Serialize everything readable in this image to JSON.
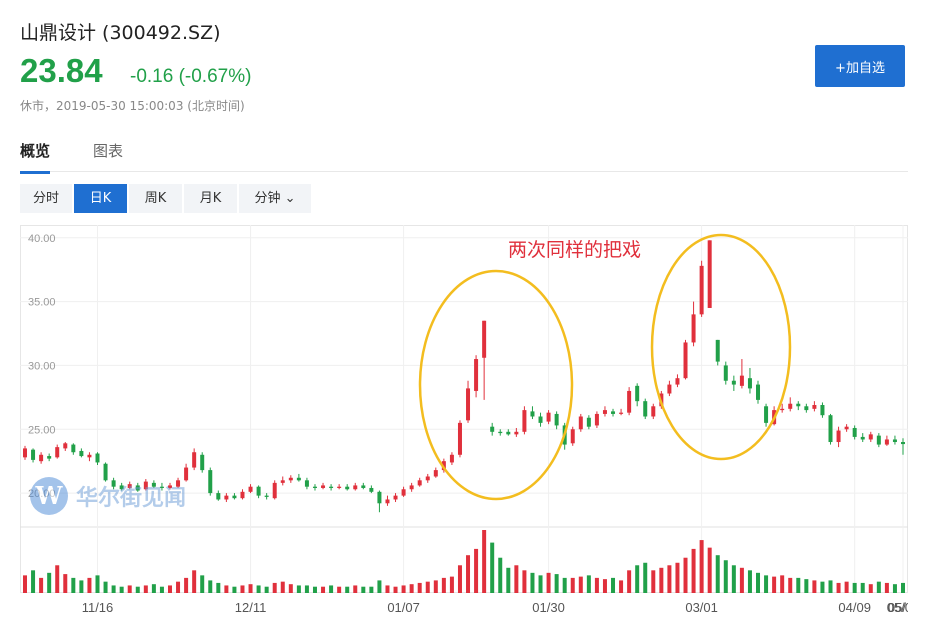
{
  "stock": {
    "title": "山鼎设计  (300492.SZ)",
    "price": "23.84",
    "change": "-0.16 (-0.67%)",
    "status": "休市，2019-05-30 15:00:03 (北京时间)"
  },
  "actions": {
    "add_watchlist": "+加自选"
  },
  "tabs": [
    {
      "label": "概览"
    },
    {
      "label": "图表"
    }
  ],
  "periods": [
    {
      "label": "分时"
    },
    {
      "label": "日K"
    },
    {
      "label": "周K"
    },
    {
      "label": "月K"
    },
    {
      "label": "分钟 ⌄"
    }
  ],
  "watermark": {
    "logo": "W",
    "text": "华尔街见闻"
  },
  "colors": {
    "up": "#e0303c",
    "down": "#21a049",
    "accent": "#1f6fd1",
    "annotation": "#f3bd1f",
    "note_text": "#e0303c"
  },
  "chart_data": {
    "type": "candlestick",
    "yticks": [
      "20.00",
      "25.00",
      "30.00",
      "35.00",
      "40.00"
    ],
    "xticks": [
      "11/16",
      "12/11",
      "01/07",
      "01/30",
      "03/01",
      "04/09",
      "05/07",
      "05/"
    ],
    "ylim": [
      17.5,
      41
    ],
    "annotation": "两次同样的把戏",
    "candles": [
      [
        22.8,
        23.5,
        23.7,
        22.6
      ],
      [
        23.4,
        22.6,
        23.5,
        22.4
      ],
      [
        22.5,
        23.0,
        23.2,
        22.3
      ],
      [
        22.9,
        22.7,
        23.1,
        22.5
      ],
      [
        22.8,
        23.6,
        23.8,
        22.7
      ],
      [
        23.5,
        23.9,
        24.0,
        23.3
      ],
      [
        23.8,
        23.2,
        23.9,
        23.0
      ],
      [
        23.3,
        22.9,
        23.5,
        22.8
      ],
      [
        22.8,
        23.0,
        23.2,
        22.5
      ],
      [
        23.1,
        22.4,
        23.2,
        22.2
      ],
      [
        22.3,
        21.0,
        22.4,
        20.9
      ],
      [
        21.0,
        20.5,
        21.2,
        20.3
      ],
      [
        20.6,
        20.3,
        20.8,
        20.2
      ],
      [
        20.4,
        20.7,
        20.9,
        20.3
      ],
      [
        20.6,
        20.2,
        20.8,
        20.1
      ],
      [
        20.3,
        20.9,
        21.1,
        20.2
      ],
      [
        20.8,
        20.5,
        21.0,
        20.4
      ],
      [
        20.5,
        20.4,
        20.8,
        20.2
      ],
      [
        20.4,
        20.6,
        20.8,
        20.3
      ],
      [
        20.5,
        21.0,
        21.2,
        20.4
      ],
      [
        21.0,
        22.0,
        22.3,
        20.9
      ],
      [
        22.0,
        23.2,
        23.5,
        21.8
      ],
      [
        23.0,
        21.8,
        23.2,
        21.6
      ],
      [
        21.8,
        20.0,
        22.0,
        19.8
      ],
      [
        20.0,
        19.5,
        20.2,
        19.4
      ],
      [
        19.5,
        19.8,
        20.0,
        19.3
      ],
      [
        19.8,
        19.6,
        20.0,
        19.5
      ],
      [
        19.6,
        20.1,
        20.3,
        19.5
      ],
      [
        20.1,
        20.5,
        20.7,
        20.0
      ],
      [
        20.5,
        19.8,
        20.6,
        19.6
      ],
      [
        19.8,
        19.7,
        20.0,
        19.5
      ],
      [
        19.6,
        20.8,
        21.0,
        19.5
      ],
      [
        20.8,
        21.0,
        21.3,
        20.6
      ],
      [
        21.0,
        21.2,
        21.4,
        20.8
      ],
      [
        21.2,
        21.0,
        21.5,
        20.9
      ],
      [
        21.0,
        20.5,
        21.2,
        20.3
      ],
      [
        20.5,
        20.4,
        20.7,
        20.2
      ],
      [
        20.4,
        20.6,
        20.8,
        20.3
      ],
      [
        20.5,
        20.4,
        20.7,
        20.2
      ],
      [
        20.4,
        20.5,
        20.7,
        20.3
      ],
      [
        20.5,
        20.3,
        20.7,
        20.2
      ],
      [
        20.3,
        20.6,
        20.8,
        20.2
      ],
      [
        20.6,
        20.4,
        20.8,
        20.3
      ],
      [
        20.4,
        20.1,
        20.6,
        20.0
      ],
      [
        20.1,
        19.2,
        20.2,
        18.5
      ],
      [
        19.2,
        19.5,
        19.8,
        19.0
      ],
      [
        19.5,
        19.8,
        20.0,
        19.3
      ],
      [
        19.8,
        20.3,
        20.5,
        19.7
      ],
      [
        20.3,
        20.6,
        20.8,
        20.1
      ],
      [
        20.6,
        21.0,
        21.2,
        20.5
      ],
      [
        21.0,
        21.3,
        21.5,
        20.8
      ],
      [
        21.3,
        21.8,
        22.0,
        21.2
      ],
      [
        21.8,
        22.5,
        22.7,
        21.6
      ],
      [
        22.4,
        23.0,
        23.2,
        22.2
      ],
      [
        23.0,
        25.5,
        25.7,
        22.8
      ],
      [
        25.7,
        28.2,
        28.8,
        25.5
      ],
      [
        28.0,
        30.5,
        30.8,
        27.5
      ],
      [
        30.6,
        33.5,
        33.5,
        27.3
      ],
      [
        25.2,
        24.8,
        25.5,
        24.5
      ],
      [
        24.8,
        24.7,
        25.0,
        24.5
      ],
      [
        24.8,
        24.6,
        25.0,
        24.5
      ],
      [
        24.6,
        24.8,
        25.1,
        24.4
      ],
      [
        24.8,
        26.5,
        26.8,
        24.6
      ],
      [
        26.4,
        26.0,
        26.8,
        25.8
      ],
      [
        26.0,
        25.5,
        26.3,
        25.2
      ],
      [
        25.6,
        26.3,
        26.5,
        25.4
      ],
      [
        26.2,
        25.3,
        26.4,
        25.0
      ],
      [
        25.3,
        23.8,
        25.5,
        23.4
      ],
      [
        23.9,
        25.0,
        25.2,
        23.7
      ],
      [
        25.0,
        26.0,
        26.2,
        24.8
      ],
      [
        25.9,
        25.2,
        26.1,
        25.0
      ],
      [
        25.3,
        26.2,
        26.4,
        25.1
      ],
      [
        26.2,
        26.5,
        26.8,
        26.0
      ],
      [
        26.4,
        26.2,
        26.6,
        26.0
      ],
      [
        26.3,
        26.3,
        26.6,
        26.1
      ],
      [
        26.3,
        28.0,
        28.3,
        26.1
      ],
      [
        28.4,
        27.2,
        28.6,
        26.8
      ],
      [
        27.2,
        26.0,
        27.4,
        25.8
      ],
      [
        26.0,
        26.8,
        27.0,
        25.8
      ],
      [
        26.8,
        27.8,
        28.0,
        26.6
      ],
      [
        27.8,
        28.5,
        28.8,
        27.6
      ],
      [
        28.5,
        29.0,
        29.3,
        28.3
      ],
      [
        29.0,
        31.8,
        32.0,
        28.9
      ],
      [
        31.8,
        34.0,
        35.0,
        31.5
      ],
      [
        34.0,
        37.8,
        38.2,
        33.8
      ],
      [
        34.5,
        39.8,
        39.8,
        34.5
      ],
      [
        32.0,
        30.3,
        32.0,
        30.0
      ],
      [
        30.0,
        28.8,
        30.3,
        28.5
      ],
      [
        28.8,
        28.5,
        29.2,
        28.0
      ],
      [
        28.4,
        29.2,
        30.5,
        28.2
      ],
      [
        29.0,
        28.2,
        29.8,
        27.8
      ],
      [
        28.5,
        27.3,
        28.8,
        27.0
      ],
      [
        26.8,
        25.5,
        27.0,
        25.2
      ],
      [
        25.4,
        26.5,
        26.8,
        25.3
      ],
      [
        26.5,
        26.6,
        27.0,
        26.3
      ],
      [
        26.6,
        27.0,
        27.5,
        26.4
      ],
      [
        27.0,
        26.8,
        27.2,
        26.5
      ],
      [
        26.8,
        26.5,
        27.0,
        26.3
      ],
      [
        26.6,
        26.9,
        27.2,
        26.4
      ],
      [
        26.9,
        26.1,
        27.1,
        25.9
      ],
      [
        26.1,
        24.0,
        26.2,
        23.8
      ],
      [
        24.0,
        24.9,
        25.2,
        23.6
      ],
      [
        25.0,
        25.2,
        25.4,
        24.8
      ],
      [
        25.1,
        24.4,
        25.3,
        24.2
      ],
      [
        24.4,
        24.2,
        24.7,
        24.0
      ],
      [
        24.2,
        24.6,
        24.8,
        24.0
      ],
      [
        24.5,
        23.8,
        24.7,
        23.6
      ],
      [
        23.8,
        24.2,
        24.5,
        23.7
      ],
      [
        24.2,
        24.0,
        24.5,
        23.8
      ],
      [
        24.0,
        23.84,
        24.3,
        23.0
      ]
    ],
    "volumes": [
      14,
      18,
      12,
      16,
      22,
      15,
      12,
      10,
      12,
      14,
      9,
      6,
      5,
      6,
      5,
      6,
      7,
      5,
      6,
      9,
      12,
      18,
      14,
      10,
      8,
      6,
      5,
      6,
      7,
      6,
      5,
      8,
      9,
      7,
      6,
      6,
      5,
      5,
      6,
      5,
      5,
      6,
      5,
      5,
      10,
      6,
      5,
      6,
      7,
      8,
      9,
      10,
      12,
      13,
      22,
      30,
      35,
      50,
      40,
      28,
      20,
      22,
      18,
      16,
      14,
      16,
      15,
      12,
      12,
      13,
      14,
      12,
      11,
      12,
      10,
      18,
      22,
      24,
      18,
      20,
      22,
      24,
      28,
      35,
      42,
      36,
      30,
      26,
      22,
      20,
      18,
      16,
      14,
      13,
      14,
      12,
      12,
      11,
      10,
      9,
      10,
      8,
      9,
      8,
      8,
      7,
      9,
      8,
      7,
      8
    ]
  }
}
